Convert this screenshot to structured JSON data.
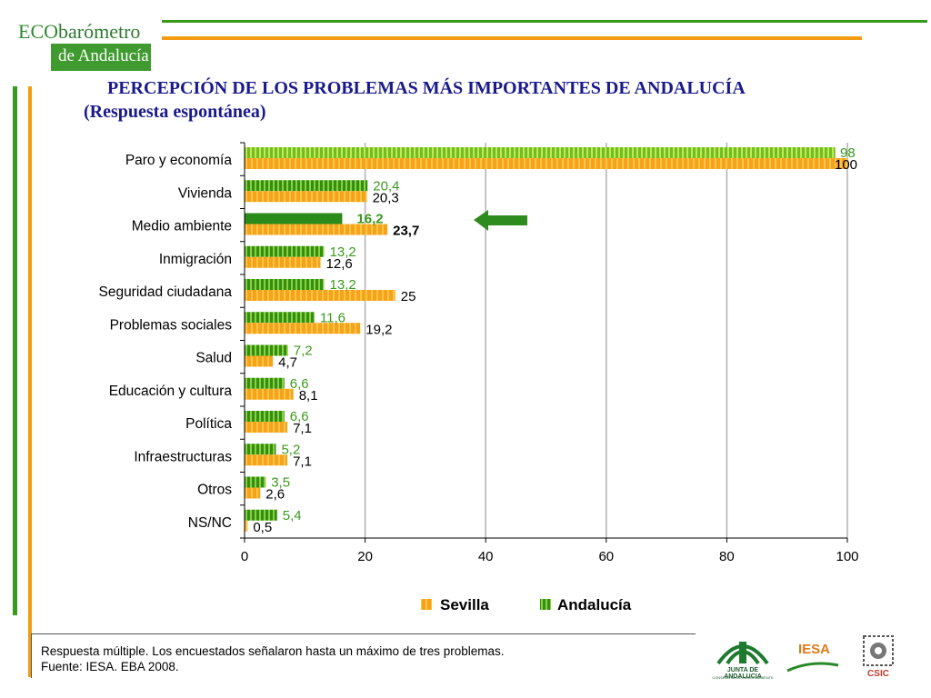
{
  "brand": {
    "eco": "ECO",
    "barometro": "barómetro",
    "region": "de Andalucía"
  },
  "title": {
    "line1": "PERCEPCIÓN DE LOS PROBLEMAS MÁS IMPORTANTES DE ANDALUCÍA",
    "line2": "(Respuesta espontánea)"
  },
  "footer": {
    "note1": "Respuesta múltiple. Los encuestados señalaron hasta un máximo de tres  problemas.",
    "note2": "Fuente: IESA. EBA 2008."
  },
  "logos": {
    "junta": "JUNTA DE ANDALUCIA",
    "junta_sub": "CONSEJERIA DE MEDIO AMBIENTE",
    "iesa": "IESA",
    "csic": "CSIC"
  },
  "colors": {
    "sevilla": "#f7a21b",
    "andalucia": "#3a9a1e",
    "andalucia_label": "#3a9a1e",
    "title": "#1a1a8c",
    "accent_orange": "#f39c12",
    "accent_green": "#3a9a1e"
  },
  "chart_data": {
    "type": "bar",
    "orientation": "horizontal",
    "categories": [
      "Paro y economía",
      "Vivienda",
      "Medio ambiente",
      "Inmigración",
      "Seguridad ciudadana",
      "Problemas sociales",
      "Salud",
      "Educación y cultura",
      "Política",
      "Infraestructuras",
      "Otros",
      "NS/NC"
    ],
    "series": [
      {
        "name": "Andalucía",
        "values": [
          98,
          20.4,
          16.2,
          13.2,
          13.2,
          11.6,
          7.2,
          6.6,
          6.6,
          5.2,
          3.5,
          5.4
        ],
        "labels": [
          "98",
          "20,4",
          "16,2",
          "13,2",
          "13,2",
          "11,6",
          "7,2",
          "6,6",
          "6,6",
          "5,2",
          "3,5",
          "5,4"
        ]
      },
      {
        "name": "Sevilla",
        "values": [
          100,
          20.3,
          23.7,
          12.6,
          25,
          19.2,
          4.7,
          8.1,
          7.1,
          7.1,
          2.6,
          0.5
        ],
        "labels": [
          "100",
          "20,3",
          "23,7",
          "12,6",
          "25",
          "19,2",
          "4,7",
          "8,1",
          "7,1",
          "7,1",
          "2,6",
          "0,5"
        ]
      }
    ],
    "highlight_category": "Medio ambiente",
    "xlim": [
      0,
      100
    ],
    "xticks": [
      "0",
      "20",
      "40",
      "60",
      "80",
      "100"
    ],
    "xtick_values": [
      0,
      20,
      40,
      60,
      80,
      100
    ],
    "legend": {
      "placement": "bottom",
      "entries": [
        "Sevilla",
        "Andalucía"
      ]
    },
    "grid": true
  }
}
